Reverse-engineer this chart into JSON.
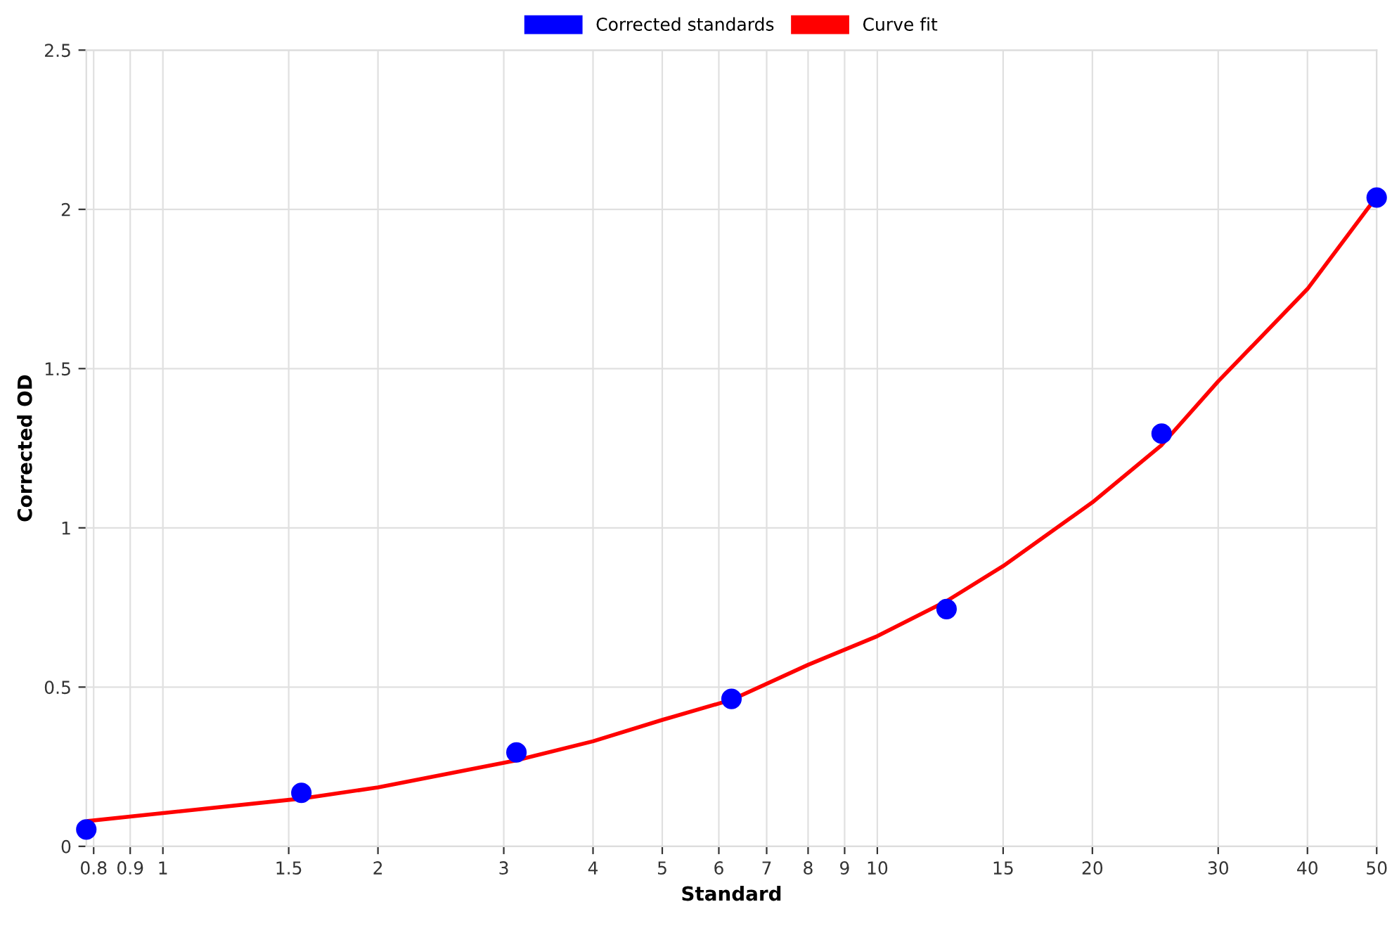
{
  "chart_data": {
    "type": "scatter",
    "xlabel": "Standard",
    "ylabel": "Corrected OD",
    "log": "x",
    "xlim": [
      0.78125,
      50
    ],
    "xticks": [
      0.8,
      0.9,
      1,
      1.5,
      2,
      3,
      4,
      5,
      6,
      7,
      8,
      9,
      10,
      15,
      20,
      30,
      40,
      50
    ],
    "ylim": [
      0,
      2.5
    ],
    "yticks": [
      0,
      0.5,
      1,
      1.5,
      2,
      2.5
    ],
    "grid": true,
    "legend": "top",
    "series": [
      {
        "name": "Corrected standards",
        "color": "#0000ff",
        "marker": "circle",
        "x": [
          0.78125,
          1.5625,
          3.125,
          6.25,
          12.5,
          25,
          50
        ],
        "values": [
          0.053,
          0.168,
          0.295,
          0.463,
          0.745,
          1.296,
          2.037
        ]
      },
      {
        "name": "Curve fit",
        "type": "line",
        "color": "#ff0000",
        "marker": "none",
        "line_style": "solid",
        "x": [
          0.78125,
          1.5625,
          2,
          3.125,
          4,
          5,
          6.25,
          8,
          10,
          12.5,
          15,
          20,
          25,
          30,
          40,
          50
        ],
        "values": [
          0.079,
          0.15,
          0.185,
          0.27,
          0.33,
          0.397,
          0.46,
          0.57,
          0.66,
          0.77,
          0.88,
          1.08,
          1.26,
          1.46,
          1.75,
          2.04
        ]
      }
    ]
  }
}
